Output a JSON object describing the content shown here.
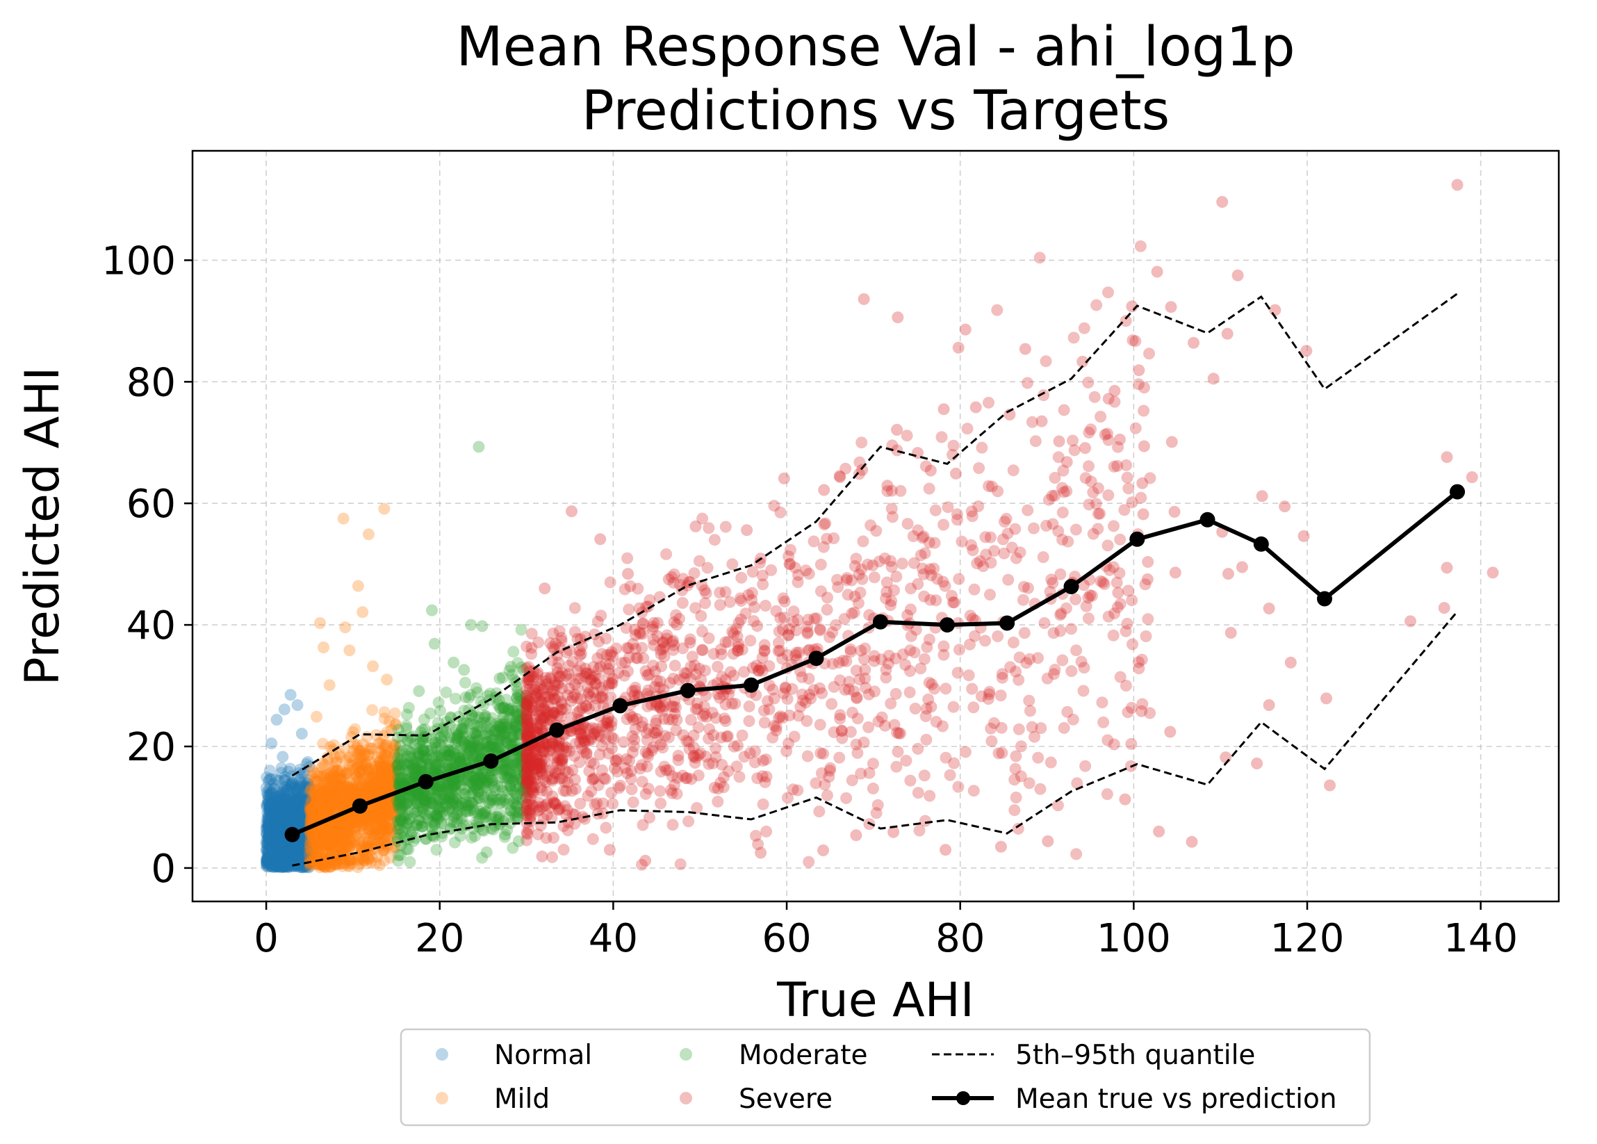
{
  "chart_data": {
    "type": "scatter",
    "title": [
      "Mean Response Val - ahi_log1p",
      "Predictions vs Targets"
    ],
    "xlabel": "True AHI",
    "ylabel": "Predicted AHI",
    "xlim": [
      -8.5,
      149
    ],
    "ylim": [
      -5.5,
      118
    ],
    "xticks": [
      0,
      20,
      40,
      60,
      80,
      100,
      120,
      140
    ],
    "yticks": [
      0,
      20,
      40,
      60,
      80,
      100
    ],
    "grid": true,
    "legend_position": "bottom-center",
    "legend_columns": 3,
    "series": [
      {
        "name": "Normal",
        "kind": "scatter",
        "color": "#1f77b4",
        "x_range": [
          0,
          5
        ],
        "points": [
          [
            1.2,
            24.4
          ],
          [
            2.1,
            26.1
          ],
          [
            2.8,
            28.5
          ],
          [
            3.6,
            26.8
          ],
          [
            0.6,
            20.5
          ],
          [
            1.9,
            18.3
          ],
          [
            4.1,
            22.1
          ],
          [
            0.4,
            14.6
          ],
          [
            2.4,
            12.9
          ],
          [
            3.9,
            16.2
          ],
          [
            1.1,
            9.8
          ],
          [
            2.9,
            7.4
          ],
          [
            0.8,
            5.2
          ],
          [
            1.7,
            3.1
          ],
          [
            3.3,
            1.5
          ],
          [
            4.5,
            11.3
          ]
        ]
      },
      {
        "name": "Mild",
        "kind": "scatter",
        "color": "#ff7f0e",
        "x_range": [
          5,
          15
        ],
        "points": [
          [
            6.2,
            40.3
          ],
          [
            9.1,
            39.6
          ],
          [
            10.6,
            46.4
          ],
          [
            11.1,
            42.1
          ],
          [
            11.8,
            54.9
          ],
          [
            13.6,
            59.1
          ],
          [
            8.9,
            57.5
          ],
          [
            6.6,
            36.3
          ],
          [
            9.6,
            35.8
          ],
          [
            12.3,
            33.2
          ],
          [
            7.3,
            30.1
          ],
          [
            13.9,
            31.0
          ],
          [
            5.8,
            24.9
          ],
          [
            14.2,
            24.1
          ]
        ]
      },
      {
        "name": "Moderate",
        "kind": "scatter",
        "color": "#2ca02c",
        "x_range": [
          15,
          30
        ],
        "points": [
          [
            24.5,
            69.3
          ],
          [
            19.1,
            42.4
          ],
          [
            23.6,
            40.0
          ],
          [
            24.9,
            39.8
          ],
          [
            19.4,
            36.9
          ],
          [
            21.6,
            33.8
          ],
          [
            26.9,
            31.2
          ],
          [
            28.2,
            33.1
          ],
          [
            17.6,
            29.1
          ],
          [
            22.8,
            32.6
          ],
          [
            16.2,
            3.1
          ],
          [
            25.4,
            2.6
          ],
          [
            29.1,
            4.4
          ]
        ]
      },
      {
        "name": "Severe",
        "kind": "scatter",
        "color": "#d62728",
        "x_range": [
          30,
          142
        ],
        "points": [
          [
            137.3,
            112.4
          ],
          [
            110.2,
            109.6
          ],
          [
            102.7,
            98.1
          ],
          [
            112.0,
            97.5
          ],
          [
            68.9,
            93.6
          ],
          [
            99.8,
            92.4
          ],
          [
            104.3,
            92.3
          ],
          [
            116.3,
            91.8
          ],
          [
            72.8,
            90.6
          ],
          [
            80.6,
            88.6
          ],
          [
            110.8,
            87.9
          ],
          [
            106.9,
            86.4
          ],
          [
            79.8,
            85.6
          ],
          [
            87.5,
            85.4
          ],
          [
            119.9,
            85.1
          ],
          [
            94.1,
            83.3
          ],
          [
            100.6,
            81.9
          ],
          [
            109.2,
            80.5
          ],
          [
            97.8,
            78.5
          ],
          [
            97.1,
            77.2
          ],
          [
            85.7,
            74.6
          ],
          [
            81.8,
            75.8
          ],
          [
            78.1,
            75.5
          ],
          [
            72.7,
            72.1
          ],
          [
            89.4,
            73.5
          ],
          [
            91.4,
            70.2
          ],
          [
            96.7,
            71.3
          ],
          [
            94.4,
            69.1
          ],
          [
            98.4,
            70.5
          ],
          [
            104.4,
            70.1
          ],
          [
            101.2,
            69.4
          ],
          [
            75.1,
            68.3
          ],
          [
            92.3,
            66.8
          ],
          [
            76.6,
            65.4
          ],
          [
            79.5,
            64.9
          ],
          [
            101.0,
            63.3
          ],
          [
            64.3,
            62.2
          ],
          [
            59.7,
            64.1
          ],
          [
            66.1,
            64.5
          ],
          [
            68.7,
            65.5
          ],
          [
            71.6,
            62.9
          ],
          [
            139.0,
            64.3
          ],
          [
            136.1,
            67.6
          ],
          [
            114.8,
            61.2
          ],
          [
            110.2,
            55.3
          ],
          [
            117.4,
            59.5
          ],
          [
            101.1,
            58.2
          ],
          [
            104.7,
            58.6
          ],
          [
            119.6,
            54.6
          ],
          [
            112.5,
            49.5
          ],
          [
            136.1,
            49.4
          ],
          [
            141.4,
            48.6
          ],
          [
            101.6,
            47.5
          ],
          [
            104.8,
            48.6
          ],
          [
            98.2,
            45.3
          ],
          [
            110.9,
            48.4
          ],
          [
            131.9,
            40.6
          ],
          [
            135.8,
            42.8
          ],
          [
            115.6,
            42.7
          ],
          [
            111.2,
            38.7
          ],
          [
            35.2,
            58.7
          ],
          [
            38.5,
            54.1
          ],
          [
            49.5,
            56.2
          ],
          [
            55.4,
            55.6
          ],
          [
            32.1,
            46.0
          ],
          [
            41.7,
            48.4
          ],
          [
            46.4,
            47.5
          ],
          [
            118.1,
            33.8
          ],
          [
            122.2,
            27.9
          ],
          [
            122.6,
            13.6
          ],
          [
            115.6,
            26.8
          ],
          [
            104.2,
            22.4
          ],
          [
            110.6,
            18.2
          ],
          [
            114.2,
            17.2
          ],
          [
            100.9,
            25.8
          ],
          [
            99.0,
            11.3
          ],
          [
            102.9,
            6.0
          ],
          [
            106.7,
            4.3
          ],
          [
            90.1,
            4.4
          ],
          [
            84.7,
            3.5
          ],
          [
            78.3,
            3.0
          ],
          [
            72.3,
            5.9
          ],
          [
            68.0,
            5.4
          ],
          [
            64.2,
            2.9
          ],
          [
            57.0,
            2.5
          ],
          [
            43.7,
            1.2
          ],
          [
            39.6,
            3.0
          ],
          [
            31.8,
            1.9
          ]
        ]
      },
      {
        "name": "5th–95th quantile",
        "kind": "dashed-line",
        "color": "#000000",
        "upper": [
          [
            3.0,
            15.2
          ],
          [
            10.8,
            22.0
          ],
          [
            18.4,
            21.8
          ],
          [
            25.9,
            27.8
          ],
          [
            33.5,
            35.5
          ],
          [
            40.8,
            40.0
          ],
          [
            48.6,
            46.5
          ],
          [
            55.9,
            49.8
          ],
          [
            63.4,
            57.0
          ],
          [
            70.8,
            69.3
          ],
          [
            78.5,
            66.5
          ],
          [
            85.4,
            75.0
          ],
          [
            92.8,
            80.5
          ],
          [
            100.4,
            92.5
          ],
          [
            108.5,
            88.0
          ],
          [
            114.7,
            94.0
          ],
          [
            122.0,
            78.8
          ],
          [
            137.3,
            94.5
          ]
        ],
        "lower": [
          [
            3.0,
            0.4
          ],
          [
            10.8,
            2.6
          ],
          [
            18.4,
            5.4
          ],
          [
            25.9,
            7.2
          ],
          [
            33.5,
            7.5
          ],
          [
            40.8,
            9.5
          ],
          [
            48.6,
            9.2
          ],
          [
            55.9,
            8.0
          ],
          [
            63.4,
            11.6
          ],
          [
            70.8,
            6.5
          ],
          [
            78.5,
            7.9
          ],
          [
            85.4,
            5.7
          ],
          [
            92.8,
            12.6
          ],
          [
            100.4,
            17.1
          ],
          [
            108.5,
            13.7
          ],
          [
            114.7,
            24.0
          ],
          [
            122.0,
            16.3
          ],
          [
            137.3,
            42.2
          ]
        ]
      },
      {
        "name": "Mean true vs prediction",
        "kind": "line-markers",
        "color": "#000000",
        "points": [
          [
            3.0,
            5.5
          ],
          [
            10.8,
            10.2
          ],
          [
            18.4,
            14.2
          ],
          [
            25.9,
            17.6
          ],
          [
            33.5,
            22.7
          ],
          [
            40.8,
            26.7
          ],
          [
            48.6,
            29.2
          ],
          [
            55.9,
            30.1
          ],
          [
            63.4,
            34.5
          ],
          [
            70.8,
            40.5
          ],
          [
            78.5,
            40.0
          ],
          [
            85.4,
            40.3
          ],
          [
            92.8,
            46.3
          ],
          [
            100.4,
            54.1
          ],
          [
            108.5,
            57.3
          ],
          [
            114.7,
            53.3
          ],
          [
            122.0,
            44.3
          ],
          [
            137.3,
            61.9
          ]
        ]
      }
    ]
  }
}
